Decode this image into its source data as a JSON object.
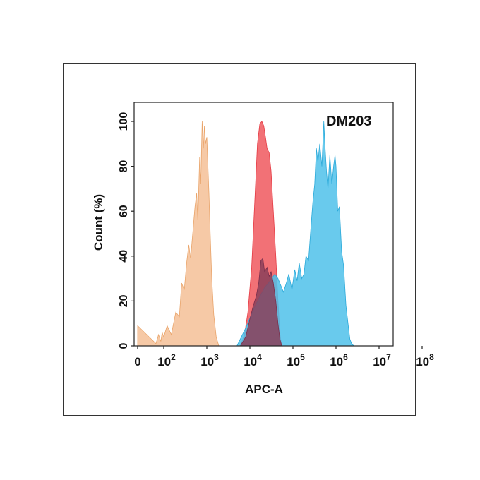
{
  "chart_data": {
    "type": "area",
    "annotation": "DM203",
    "xlabel": "APC-A",
    "ylabel": "Count (%)",
    "x_scale": "log",
    "x_ticks": [
      {
        "value": 0,
        "base": "0",
        "exp": ""
      },
      {
        "value": 100,
        "base": "10",
        "exp": "2"
      },
      {
        "value": 1000,
        "base": "10",
        "exp": "3"
      },
      {
        "value": 10000,
        "base": "10",
        "exp": "4"
      },
      {
        "value": 100000,
        "base": "10",
        "exp": "5"
      },
      {
        "value": 1000000,
        "base": "10",
        "exp": "6"
      },
      {
        "value": 10000000,
        "base": "10",
        "exp": "7"
      },
      {
        "value": 100000000,
        "base": "10",
        "exp": "8"
      }
    ],
    "y_ticks": [
      "0",
      "20",
      "40",
      "60",
      "80",
      "100"
    ],
    "ylim": [
      0,
      100
    ],
    "grid": false,
    "series": [
      {
        "color": "#f5c096",
        "stroke": "#e9a46a",
        "x": [
          0,
          25,
          40,
          60,
          75,
          100,
          120,
          150,
          190,
          230,
          260,
          300,
          340,
          380,
          420,
          470,
          530,
          580,
          620,
          680,
          720,
          780,
          830,
          880,
          930,
          1000,
          1050,
          1120,
          1200,
          1300,
          1450,
          1650,
          1900
        ],
        "y": [
          9,
          1,
          5,
          2,
          6,
          4,
          9,
          5,
          15,
          13,
          28,
          25,
          37,
          45,
          39,
          50,
          62,
          68,
          56,
          84,
          72,
          100,
          88,
          98,
          90,
          93,
          82,
          68,
          50,
          30,
          14,
          4,
          0
        ]
      },
      {
        "color": "#f0585e",
        "stroke": "#e53b44",
        "x": [
          6000,
          7500,
          9000,
          11000,
          13000,
          15000,
          17000,
          19000,
          21000,
          23000,
          25000,
          28000,
          31000,
          35000,
          40000,
          45000,
          50000,
          55000
        ],
        "y": [
          0,
          5,
          15,
          35,
          65,
          90,
          99,
          100,
          98,
          93,
          88,
          86,
          78,
          60,
          40,
          20,
          5,
          0
        ]
      },
      {
        "color": "#4fc1ea",
        "stroke": "#2aa9d9",
        "x": [
          5000,
          8000,
          12000,
          17000,
          22000,
          27000,
          32000,
          38000,
          45000,
          52000,
          60000,
          70000,
          80000,
          95000,
          110000,
          125000,
          140000,
          160000,
          180000,
          200000,
          230000,
          260000,
          290000,
          320000,
          350000,
          380000,
          420000,
          470000,
          520000,
          560000,
          600000,
          650000,
          720000,
          800000,
          880000,
          950000,
          1000000,
          1100000,
          1200000,
          1350000,
          1500000,
          1700000,
          1900000,
          2100000,
          2300000,
          2600000
        ],
        "y": [
          0,
          8,
          16,
          22,
          26,
          28,
          30,
          32,
          30,
          27,
          24,
          28,
          32,
          25,
          34,
          29,
          37,
          30,
          32,
          40,
          38,
          52,
          64,
          72,
          88,
          82,
          90,
          80,
          100,
          88,
          78,
          70,
          85,
          72,
          80,
          85,
          80,
          60,
          62,
          42,
          36,
          18,
          10,
          3,
          1,
          0
        ]
      },
      {
        "color": "#8a3f5a",
        "stroke": "#7a2f4c",
        "x": [
          6000,
          8000,
          10000,
          12000,
          14000,
          16000,
          18000,
          20000,
          22000,
          25000,
          28000,
          31000,
          35000,
          40000,
          45000,
          50000,
          55000
        ],
        "y": [
          0,
          4,
          12,
          18,
          22,
          28,
          38,
          39,
          33,
          35,
          31,
          33,
          28,
          20,
          10,
          3,
          0
        ]
      }
    ]
  }
}
